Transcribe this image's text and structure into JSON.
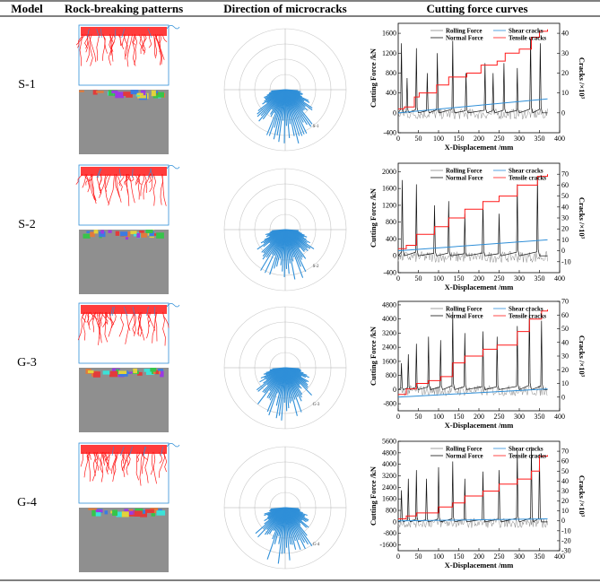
{
  "headers": {
    "model": "Model",
    "patterns": "Rock-breaking patterns",
    "microcracks": "Direction of microcracks",
    "curves": "Cutting force curves"
  },
  "legend": {
    "rolling": "Rolling Force",
    "normal": "Normal Force",
    "shear": "Shear cracks",
    "tensile": "Tensile cracks"
  },
  "colors": {
    "tensile": "#ff1a1a",
    "shear": "#2f8fd8",
    "rolling": "#888888",
    "normal": "#111111",
    "rock": "#8f8f8f"
  },
  "rows": [
    {
      "model": "S-1",
      "rose_label": "S-1",
      "chart_data": {
        "type": "line",
        "xlabel": "X-Displacement /mm",
        "ylabel": "Cutting Force /kN",
        "y2label": "Cracks /×10³",
        "xlim": [
          0,
          400
        ],
        "ylim": [
          -400,
          1800
        ],
        "y2lim": [
          -10,
          45
        ],
        "x_ticks": [
          0,
          50,
          100,
          150,
          200,
          250,
          300,
          350,
          400
        ],
        "y_ticks": [
          -400,
          0,
          400,
          800,
          1200,
          1600
        ],
        "y2_ticks": [
          0,
          10,
          20,
          30,
          40
        ],
        "normal_peaks": [
          [
            8,
            1400
          ],
          [
            22,
            700
          ],
          [
            45,
            1300
          ],
          [
            72,
            800
          ],
          [
            97,
            1200
          ],
          [
            135,
            1450
          ],
          [
            168,
            800
          ],
          [
            215,
            1000
          ],
          [
            235,
            800
          ],
          [
            262,
            1000
          ],
          [
            295,
            900
          ],
          [
            328,
            1500
          ],
          [
            352,
            1400
          ]
        ],
        "tensile_steps": [
          [
            0,
            2
          ],
          [
            15,
            3
          ],
          [
            40,
            8
          ],
          [
            52,
            10
          ],
          [
            95,
            14
          ],
          [
            125,
            18
          ],
          [
            170,
            20
          ],
          [
            205,
            24
          ],
          [
            245,
            26
          ],
          [
            265,
            30
          ],
          [
            300,
            32
          ],
          [
            330,
            38
          ],
          [
            350,
            41
          ],
          [
            370,
            42
          ]
        ],
        "shear_points": [
          [
            0,
            0
          ],
          [
            370,
            7
          ]
        ]
      }
    },
    {
      "model": "S-2",
      "rose_label": "S-2",
      "chart_data": {
        "type": "line",
        "xlabel": "X-Displacement /mm",
        "ylabel": "Cutting Force /kN",
        "y2label": "Cracks /×10³",
        "xlim": [
          0,
          400
        ],
        "ylim": [
          -400,
          2200
        ],
        "y2lim": [
          -20,
          80
        ],
        "x_ticks": [
          0,
          50,
          100,
          150,
          200,
          250,
          300,
          350,
          400
        ],
        "y_ticks": [
          -400,
          0,
          400,
          800,
          1200,
          1600,
          2000
        ],
        "y2_ticks": [
          -10,
          0,
          10,
          20,
          30,
          40,
          50,
          60,
          70
        ],
        "normal_peaks": [
          [
            10,
            1800
          ],
          [
            45,
            1700
          ],
          [
            90,
            1200
          ],
          [
            125,
            1300
          ],
          [
            165,
            1000
          ],
          [
            210,
            1300
          ],
          [
            250,
            1000
          ],
          [
            295,
            1700
          ],
          [
            345,
            1900
          ]
        ],
        "tensile_steps": [
          [
            0,
            2
          ],
          [
            20,
            5
          ],
          [
            45,
            15
          ],
          [
            90,
            22
          ],
          [
            125,
            30
          ],
          [
            165,
            38
          ],
          [
            210,
            45
          ],
          [
            250,
            50
          ],
          [
            295,
            60
          ],
          [
            345,
            68
          ],
          [
            370,
            70
          ]
        ],
        "shear_points": [
          [
            0,
            0
          ],
          [
            370,
            10
          ]
        ]
      }
    },
    {
      "model": "G-3",
      "rose_label": "G-3",
      "chart_data": {
        "type": "line",
        "xlabel": "X-Displacement /mm",
        "ylabel": "Cutting Force /kN",
        "y2label": "Cracks /×10³",
        "xlim": [
          0,
          400
        ],
        "ylim": [
          -1200,
          5000
        ],
        "y2lim": [
          -10,
          70
        ],
        "x_ticks": [
          0,
          50,
          100,
          150,
          200,
          250,
          300,
          350,
          400
        ],
        "y_ticks": [
          -800,
          0,
          800,
          1600,
          2400,
          3200,
          4000,
          4800
        ],
        "y2_ticks": [
          0,
          10,
          20,
          30,
          40,
          50,
          60,
          70
        ],
        "normal_peaks": [
          [
            8,
            1500
          ],
          [
            25,
            2000
          ],
          [
            45,
            2600
          ],
          [
            75,
            3000
          ],
          [
            105,
            2800
          ],
          [
            135,
            4400
          ],
          [
            165,
            3200
          ],
          [
            210,
            3300
          ],
          [
            245,
            3000
          ],
          [
            295,
            3600
          ],
          [
            325,
            4700
          ],
          [
            355,
            3900
          ]
        ],
        "tensile_steps": [
          [
            0,
            2
          ],
          [
            20,
            6
          ],
          [
            45,
            10
          ],
          [
            75,
            12
          ],
          [
            105,
            15
          ],
          [
            135,
            25
          ],
          [
            165,
            30
          ],
          [
            210,
            35
          ],
          [
            245,
            38
          ],
          [
            295,
            48
          ],
          [
            325,
            57
          ],
          [
            355,
            63
          ],
          [
            370,
            64
          ]
        ],
        "shear_points": [
          [
            0,
            0
          ],
          [
            370,
            6
          ]
        ]
      }
    },
    {
      "model": "G-4",
      "rose_label": "G-4",
      "chart_data": {
        "type": "line",
        "xlabel": "X-Displacement /mm",
        "ylabel": "Cutting Force /kN",
        "y2label": "Cracks /×10³",
        "xlim": [
          0,
          400
        ],
        "ylim": [
          -2000,
          5600
        ],
        "y2lim": [
          -30,
          80
        ],
        "x_ticks": [
          0,
          50,
          100,
          150,
          200,
          250,
          300,
          350,
          400
        ],
        "y_ticks": [
          -1600,
          -800,
          0,
          800,
          1600,
          2400,
          3200,
          4000,
          4800,
          5600
        ],
        "y2_ticks": [
          -30,
          -20,
          -10,
          0,
          10,
          20,
          30,
          40,
          50,
          60,
          70
        ],
        "normal_peaks": [
          [
            8,
            2200
          ],
          [
            25,
            3000
          ],
          [
            45,
            3600
          ],
          [
            70,
            3000
          ],
          [
            100,
            3800
          ],
          [
            135,
            4200
          ],
          [
            165,
            3000
          ],
          [
            210,
            3500
          ],
          [
            250,
            3600
          ],
          [
            295,
            5000
          ],
          [
            330,
            5200
          ],
          [
            350,
            4700
          ]
        ],
        "tensile_steps": [
          [
            0,
            2
          ],
          [
            20,
            5
          ],
          [
            45,
            8
          ],
          [
            100,
            14
          ],
          [
            135,
            18
          ],
          [
            165,
            25
          ],
          [
            210,
            30
          ],
          [
            250,
            37
          ],
          [
            295,
            42
          ],
          [
            330,
            50
          ],
          [
            350,
            65
          ],
          [
            370,
            66
          ]
        ],
        "shear_points": [
          [
            0,
            0
          ],
          [
            370,
            2
          ]
        ]
      }
    }
  ]
}
